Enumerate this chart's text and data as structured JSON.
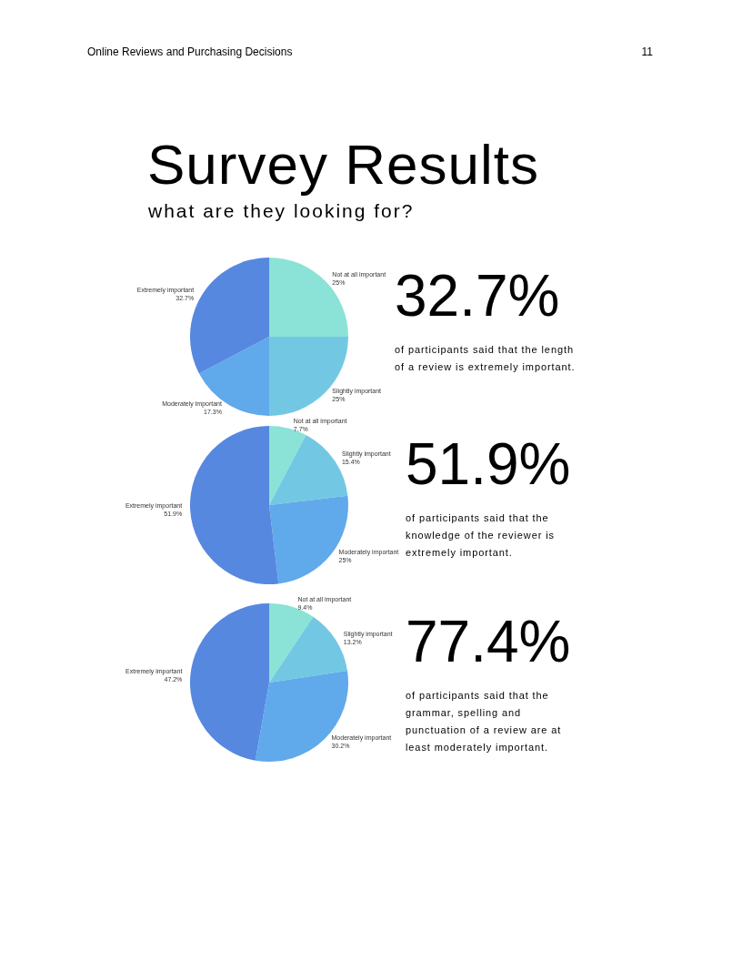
{
  "chart_data": [
    {
      "type": "pie",
      "title": "Survey Results",
      "subtitle": "what are they looking for?",
      "categories": [
        "Not at all important",
        "Slightly important",
        "Moderately important",
        "Extremely important"
      ],
      "values": [
        25,
        25,
        17.3,
        32.7
      ],
      "value_labels": [
        "25%",
        "25%",
        "17.3%",
        "32.7%"
      ],
      "colors": [
        "#8ae3d6",
        "#72c8e3",
        "#60a9eb",
        "#5688e0"
      ],
      "annotations": [
        "Online Reviews and Purchasing Decisions",
        "11",
        "32.7%",
        "of participants said that the length of a review is extremely important."
      ]
    },
    {
      "type": "pie",
      "categories": [
        "Not at all important",
        "Slightly important",
        "Moderately important",
        "Extremely important"
      ],
      "values": [
        7.7,
        15.4,
        25,
        51.9
      ],
      "value_labels": [
        "7.7%",
        "15.4%",
        "25%",
        "51.9%"
      ],
      "colors": [
        "#8ae3d6",
        "#72c8e3",
        "#60a9eb",
        "#5688e0"
      ],
      "annotations": [
        "51.9%",
        "of participants said that the knowledge of the reviewer is extremely important."
      ]
    },
    {
      "type": "pie",
      "categories": [
        "Not at all important",
        "Slightly important",
        "Moderately important",
        "Extremely important"
      ],
      "values": [
        9.4,
        13.2,
        30.2,
        47.2
      ],
      "value_labels": [
        "9.4%",
        "13.2%",
        "30.2%",
        "47.2%"
      ],
      "colors": [
        "#8ae3d6",
        "#72c8e3",
        "#60a9eb",
        "#5688e0"
      ],
      "annotations": [
        "77.4%",
        "of participants said that the grammar, spelling and punctuation of a review are at least moderately important."
      ]
    }
  ]
}
